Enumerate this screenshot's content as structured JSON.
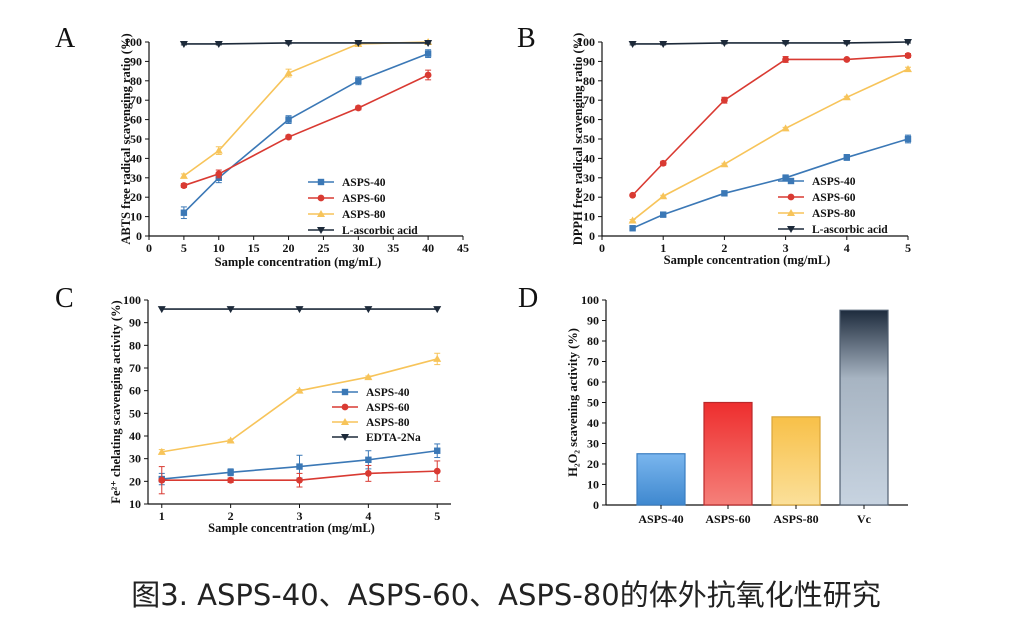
{
  "caption": "图3. ASPS-40、ASPS-60、ASPS-80的体外抗氧化性研究",
  "colors": {
    "ASPS-40": "#3b78b6",
    "ASPS-60": "#d93a32",
    "ASPS-80": "#f7c45a",
    "control": "#1d2a3a"
  },
  "chart_data": [
    {
      "panel": "A",
      "type": "line",
      "xlabel": "Sample concentration (mg/mL)",
      "ylabel": "ABTS free radical scavenging ratio (%)",
      "xlim": [
        0,
        45
      ],
      "ylim": [
        0,
        100
      ],
      "xticks": [
        0,
        5,
        10,
        15,
        20,
        25,
        30,
        35,
        40,
        45
      ],
      "yticks": [
        0,
        10,
        20,
        30,
        40,
        50,
        60,
        70,
        80,
        90,
        100
      ],
      "x": [
        5,
        10,
        20,
        30,
        40
      ],
      "legend_position": "lower-right",
      "series": [
        {
          "name": "ASPS-40",
          "marker": "square",
          "values": [
            12,
            30,
            60,
            80,
            94
          ],
          "errors": [
            3,
            2.5,
            2,
            2,
            2
          ]
        },
        {
          "name": "ASPS-60",
          "marker": "circle",
          "values": [
            26,
            32,
            51,
            66,
            83
          ],
          "errors": [
            1,
            2,
            1,
            1,
            2.5
          ]
        },
        {
          "name": "ASPS-80",
          "marker": "triangle-up",
          "values": [
            31,
            44,
            84,
            99,
            100
          ],
          "errors": [
            1,
            2,
            2,
            1,
            0.5
          ]
        },
        {
          "name": "L-ascorbic acid",
          "marker": "triangle-down",
          "values": [
            99,
            99,
            99.5,
            99.5,
            99.5
          ],
          "errors": [
            0.5,
            0.5,
            0.5,
            0.5,
            0.5
          ]
        }
      ]
    },
    {
      "panel": "B",
      "type": "line",
      "xlabel": "Sample concentration (mg/mL)",
      "ylabel": "DPPH free radical scavenging ratio (%)",
      "xlim": [
        0,
        5
      ],
      "ylim": [
        0,
        100
      ],
      "xticks": [
        0,
        1,
        2,
        3,
        4,
        5
      ],
      "yticks": [
        0,
        10,
        20,
        30,
        40,
        50,
        60,
        70,
        80,
        90,
        100
      ],
      "x": [
        0.5,
        1,
        2,
        3,
        4,
        5
      ],
      "legend_position": "lower-right",
      "series": [
        {
          "name": "ASPS-40",
          "marker": "square",
          "values": [
            4,
            11,
            22,
            30,
            40.5,
            50
          ],
          "errors": [
            0.5,
            1,
            1,
            1.5,
            1.5,
            2
          ]
        },
        {
          "name": "ASPS-60",
          "marker": "circle",
          "values": [
            21,
            37.5,
            70,
            91,
            91,
            93
          ],
          "errors": [
            0.5,
            1,
            1.5,
            1.5,
            0.5,
            1
          ]
        },
        {
          "name": "ASPS-80",
          "marker": "triangle-up",
          "values": [
            8,
            20.5,
            37,
            55.5,
            71.5,
            86
          ],
          "errors": [
            0.5,
            0.5,
            0.5,
            0.5,
            0.5,
            1
          ]
        },
        {
          "name": "L-ascorbic acid",
          "marker": "triangle-down",
          "values": [
            99,
            99,
            99.5,
            99.5,
            99.5,
            100
          ],
          "errors": [
            0.5,
            0.5,
            0.5,
            0.5,
            0.5,
            0.5
          ]
        }
      ]
    },
    {
      "panel": "C",
      "type": "line",
      "xlabel": "Sample concentration (mg/mL)",
      "ylabel": "Fe²⁺ chelating scavenging activity (%)",
      "xlim": [
        0.8,
        5.2
      ],
      "ylim": [
        10,
        100
      ],
      "xticks": [
        1,
        2,
        3,
        4,
        5
      ],
      "yticks": [
        10,
        20,
        30,
        40,
        50,
        60,
        70,
        80,
        90,
        100
      ],
      "x": [
        1,
        2,
        3,
        4,
        5
      ],
      "legend_position": "center-right",
      "series": [
        {
          "name": "ASPS-40",
          "marker": "square",
          "values": [
            21,
            24,
            26.5,
            29.5,
            33.5
          ],
          "errors": [
            2.5,
            1.5,
            5,
            4,
            3
          ]
        },
        {
          "name": "ASPS-60",
          "marker": "circle",
          "values": [
            20.5,
            20.5,
            20.5,
            23.5,
            24.5
          ],
          "errors": [
            6,
            1,
            3,
            3.5,
            4.5
          ]
        },
        {
          "name": "ASPS-80",
          "marker": "triangle-up",
          "values": [
            33,
            38,
            60,
            66,
            74
          ],
          "errors": [
            1,
            0.5,
            0.5,
            0.5,
            2.5
          ]
        },
        {
          "name": "EDTA-2Na",
          "marker": "triangle-down",
          "values": [
            96,
            96,
            96,
            96,
            96
          ],
          "errors": [
            0,
            0,
            0,
            0,
            0
          ]
        }
      ]
    },
    {
      "panel": "D",
      "type": "bar",
      "ylabel": "H₂O₂ scavening activity (%)",
      "ylim": [
        0,
        100
      ],
      "yticks": [
        0,
        10,
        20,
        30,
        40,
        50,
        60,
        70,
        80,
        90,
        100
      ],
      "categories": [
        "ASPS-40",
        "ASPS-60",
        "ASPS-80",
        "Vc"
      ],
      "values": [
        25,
        50,
        43,
        95
      ]
    }
  ]
}
